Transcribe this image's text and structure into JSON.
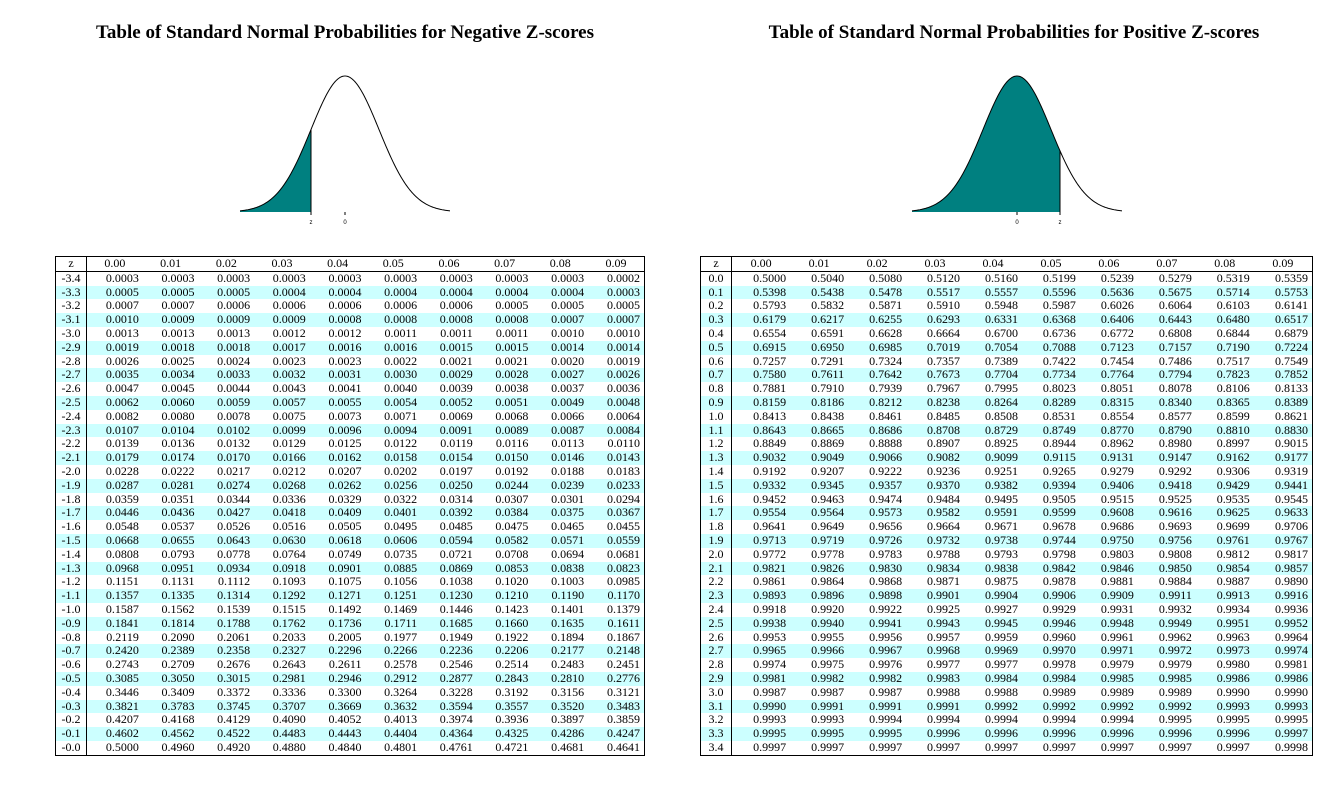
{
  "colors": {
    "shade": "#008080",
    "stripe": "#ccffff"
  },
  "negative": {
    "title": "Table of Standard Normal Probabilities for Negative Z-scores",
    "curve": {
      "shaded": "left-tail",
      "z_label": "z",
      "zero_label": "0"
    },
    "header": [
      "z",
      "0.00",
      "0.01",
      "0.02",
      "0.03",
      "0.04",
      "0.05",
      "0.06",
      "0.07",
      "0.08",
      "0.09"
    ],
    "rows": [
      [
        "-3.4",
        "0.0003",
        "0.0003",
        "0.0003",
        "0.0003",
        "0.0003",
        "0.0003",
        "0.0003",
        "0.0003",
        "0.0003",
        "0.0002"
      ],
      [
        "-3.3",
        "0.0005",
        "0.0005",
        "0.0005",
        "0.0004",
        "0.0004",
        "0.0004",
        "0.0004",
        "0.0004",
        "0.0004",
        "0.0003"
      ],
      [
        "-3.2",
        "0.0007",
        "0.0007",
        "0.0006",
        "0.0006",
        "0.0006",
        "0.0006",
        "0.0006",
        "0.0005",
        "0.0005",
        "0.0005"
      ],
      [
        "-3.1",
        "0.0010",
        "0.0009",
        "0.0009",
        "0.0009",
        "0.0008",
        "0.0008",
        "0.0008",
        "0.0008",
        "0.0007",
        "0.0007"
      ],
      [
        "-3.0",
        "0.0013",
        "0.0013",
        "0.0013",
        "0.0012",
        "0.0012",
        "0.0011",
        "0.0011",
        "0.0011",
        "0.0010",
        "0.0010"
      ],
      [
        "-2.9",
        "0.0019",
        "0.0018",
        "0.0018",
        "0.0017",
        "0.0016",
        "0.0016",
        "0.0015",
        "0.0015",
        "0.0014",
        "0.0014"
      ],
      [
        "-2.8",
        "0.0026",
        "0.0025",
        "0.0024",
        "0.0023",
        "0.0023",
        "0.0022",
        "0.0021",
        "0.0021",
        "0.0020",
        "0.0019"
      ],
      [
        "-2.7",
        "0.0035",
        "0.0034",
        "0.0033",
        "0.0032",
        "0.0031",
        "0.0030",
        "0.0029",
        "0.0028",
        "0.0027",
        "0.0026"
      ],
      [
        "-2.6",
        "0.0047",
        "0.0045",
        "0.0044",
        "0.0043",
        "0.0041",
        "0.0040",
        "0.0039",
        "0.0038",
        "0.0037",
        "0.0036"
      ],
      [
        "-2.5",
        "0.0062",
        "0.0060",
        "0.0059",
        "0.0057",
        "0.0055",
        "0.0054",
        "0.0052",
        "0.0051",
        "0.0049",
        "0.0048"
      ],
      [
        "-2.4",
        "0.0082",
        "0.0080",
        "0.0078",
        "0.0075",
        "0.0073",
        "0.0071",
        "0.0069",
        "0.0068",
        "0.0066",
        "0.0064"
      ],
      [
        "-2.3",
        "0.0107",
        "0.0104",
        "0.0102",
        "0.0099",
        "0.0096",
        "0.0094",
        "0.0091",
        "0.0089",
        "0.0087",
        "0.0084"
      ],
      [
        "-2.2",
        "0.0139",
        "0.0136",
        "0.0132",
        "0.0129",
        "0.0125",
        "0.0122",
        "0.0119",
        "0.0116",
        "0.0113",
        "0.0110"
      ],
      [
        "-2.1",
        "0.0179",
        "0.0174",
        "0.0170",
        "0.0166",
        "0.0162",
        "0.0158",
        "0.0154",
        "0.0150",
        "0.0146",
        "0.0143"
      ],
      [
        "-2.0",
        "0.0228",
        "0.0222",
        "0.0217",
        "0.0212",
        "0.0207",
        "0.0202",
        "0.0197",
        "0.0192",
        "0.0188",
        "0.0183"
      ],
      [
        "-1.9",
        "0.0287",
        "0.0281",
        "0.0274",
        "0.0268",
        "0.0262",
        "0.0256",
        "0.0250",
        "0.0244",
        "0.0239",
        "0.0233"
      ],
      [
        "-1.8",
        "0.0359",
        "0.0351",
        "0.0344",
        "0.0336",
        "0.0329",
        "0.0322",
        "0.0314",
        "0.0307",
        "0.0301",
        "0.0294"
      ],
      [
        "-1.7",
        "0.0446",
        "0.0436",
        "0.0427",
        "0.0418",
        "0.0409",
        "0.0401",
        "0.0392",
        "0.0384",
        "0.0375",
        "0.0367"
      ],
      [
        "-1.6",
        "0.0548",
        "0.0537",
        "0.0526",
        "0.0516",
        "0.0505",
        "0.0495",
        "0.0485",
        "0.0475",
        "0.0465",
        "0.0455"
      ],
      [
        "-1.5",
        "0.0668",
        "0.0655",
        "0.0643",
        "0.0630",
        "0.0618",
        "0.0606",
        "0.0594",
        "0.0582",
        "0.0571",
        "0.0559"
      ],
      [
        "-1.4",
        "0.0808",
        "0.0793",
        "0.0778",
        "0.0764",
        "0.0749",
        "0.0735",
        "0.0721",
        "0.0708",
        "0.0694",
        "0.0681"
      ],
      [
        "-1.3",
        "0.0968",
        "0.0951",
        "0.0934",
        "0.0918",
        "0.0901",
        "0.0885",
        "0.0869",
        "0.0853",
        "0.0838",
        "0.0823"
      ],
      [
        "-1.2",
        "0.1151",
        "0.1131",
        "0.1112",
        "0.1093",
        "0.1075",
        "0.1056",
        "0.1038",
        "0.1020",
        "0.1003",
        "0.0985"
      ],
      [
        "-1.1",
        "0.1357",
        "0.1335",
        "0.1314",
        "0.1292",
        "0.1271",
        "0.1251",
        "0.1230",
        "0.1210",
        "0.1190",
        "0.1170"
      ],
      [
        "-1.0",
        "0.1587",
        "0.1562",
        "0.1539",
        "0.1515",
        "0.1492",
        "0.1469",
        "0.1446",
        "0.1423",
        "0.1401",
        "0.1379"
      ],
      [
        "-0.9",
        "0.1841",
        "0.1814",
        "0.1788",
        "0.1762",
        "0.1736",
        "0.1711",
        "0.1685",
        "0.1660",
        "0.1635",
        "0.1611"
      ],
      [
        "-0.8",
        "0.2119",
        "0.2090",
        "0.2061",
        "0.2033",
        "0.2005",
        "0.1977",
        "0.1949",
        "0.1922",
        "0.1894",
        "0.1867"
      ],
      [
        "-0.7",
        "0.2420",
        "0.2389",
        "0.2358",
        "0.2327",
        "0.2296",
        "0.2266",
        "0.2236",
        "0.2206",
        "0.2177",
        "0.2148"
      ],
      [
        "-0.6",
        "0.2743",
        "0.2709",
        "0.2676",
        "0.2643",
        "0.2611",
        "0.2578",
        "0.2546",
        "0.2514",
        "0.2483",
        "0.2451"
      ],
      [
        "-0.5",
        "0.3085",
        "0.3050",
        "0.3015",
        "0.2981",
        "0.2946",
        "0.2912",
        "0.2877",
        "0.2843",
        "0.2810",
        "0.2776"
      ],
      [
        "-0.4",
        "0.3446",
        "0.3409",
        "0.3372",
        "0.3336",
        "0.3300",
        "0.3264",
        "0.3228",
        "0.3192",
        "0.3156",
        "0.3121"
      ],
      [
        "-0.3",
        "0.3821",
        "0.3783",
        "0.3745",
        "0.3707",
        "0.3669",
        "0.3632",
        "0.3594",
        "0.3557",
        "0.3520",
        "0.3483"
      ],
      [
        "-0.2",
        "0.4207",
        "0.4168",
        "0.4129",
        "0.4090",
        "0.4052",
        "0.4013",
        "0.3974",
        "0.3936",
        "0.3897",
        "0.3859"
      ],
      [
        "-0.1",
        "0.4602",
        "0.4562",
        "0.4522",
        "0.4483",
        "0.4443",
        "0.4404",
        "0.4364",
        "0.4325",
        "0.4286",
        "0.4247"
      ],
      [
        "-0.0",
        "0.5000",
        "0.4960",
        "0.4920",
        "0.4880",
        "0.4840",
        "0.4801",
        "0.4761",
        "0.4721",
        "0.4681",
        "0.4641"
      ]
    ]
  },
  "positive": {
    "title": "Table of Standard Normal Probabilities for Positive Z-scores",
    "curve": {
      "shaded": "left-of-positive-z",
      "z_label": "z",
      "zero_label": "0"
    },
    "header": [
      "z",
      "0.00",
      "0.01",
      "0.02",
      "0.03",
      "0.04",
      "0.05",
      "0.06",
      "0.07",
      "0.08",
      "0.09"
    ],
    "rows": [
      [
        "0.0",
        "0.5000",
        "0.5040",
        "0.5080",
        "0.5120",
        "0.5160",
        "0.5199",
        "0.5239",
        "0.5279",
        "0.5319",
        "0.5359"
      ],
      [
        "0.1",
        "0.5398",
        "0.5438",
        "0.5478",
        "0.5517",
        "0.5557",
        "0.5596",
        "0.5636",
        "0.5675",
        "0.5714",
        "0.5753"
      ],
      [
        "0.2",
        "0.5793",
        "0.5832",
        "0.5871",
        "0.5910",
        "0.5948",
        "0.5987",
        "0.6026",
        "0.6064",
        "0.6103",
        "0.6141"
      ],
      [
        "0.3",
        "0.6179",
        "0.6217",
        "0.6255",
        "0.6293",
        "0.6331",
        "0.6368",
        "0.6406",
        "0.6443",
        "0.6480",
        "0.6517"
      ],
      [
        "0.4",
        "0.6554",
        "0.6591",
        "0.6628",
        "0.6664",
        "0.6700",
        "0.6736",
        "0.6772",
        "0.6808",
        "0.6844",
        "0.6879"
      ],
      [
        "0.5",
        "0.6915",
        "0.6950",
        "0.6985",
        "0.7019",
        "0.7054",
        "0.7088",
        "0.7123",
        "0.7157",
        "0.7190",
        "0.7224"
      ],
      [
        "0.6",
        "0.7257",
        "0.7291",
        "0.7324",
        "0.7357",
        "0.7389",
        "0.7422",
        "0.7454",
        "0.7486",
        "0.7517",
        "0.7549"
      ],
      [
        "0.7",
        "0.7580",
        "0.7611",
        "0.7642",
        "0.7673",
        "0.7704",
        "0.7734",
        "0.7764",
        "0.7794",
        "0.7823",
        "0.7852"
      ],
      [
        "0.8",
        "0.7881",
        "0.7910",
        "0.7939",
        "0.7967",
        "0.7995",
        "0.8023",
        "0.8051",
        "0.8078",
        "0.8106",
        "0.8133"
      ],
      [
        "0.9",
        "0.8159",
        "0.8186",
        "0.8212",
        "0.8238",
        "0.8264",
        "0.8289",
        "0.8315",
        "0.8340",
        "0.8365",
        "0.8389"
      ],
      [
        "1.0",
        "0.8413",
        "0.8438",
        "0.8461",
        "0.8485",
        "0.8508",
        "0.8531",
        "0.8554",
        "0.8577",
        "0.8599",
        "0.8621"
      ],
      [
        "1.1",
        "0.8643",
        "0.8665",
        "0.8686",
        "0.8708",
        "0.8729",
        "0.8749",
        "0.8770",
        "0.8790",
        "0.8810",
        "0.8830"
      ],
      [
        "1.2",
        "0.8849",
        "0.8869",
        "0.8888",
        "0.8907",
        "0.8925",
        "0.8944",
        "0.8962",
        "0.8980",
        "0.8997",
        "0.9015"
      ],
      [
        "1.3",
        "0.9032",
        "0.9049",
        "0.9066",
        "0.9082",
        "0.9099",
        "0.9115",
        "0.9131",
        "0.9147",
        "0.9162",
        "0.9177"
      ],
      [
        "1.4",
        "0.9192",
        "0.9207",
        "0.9222",
        "0.9236",
        "0.9251",
        "0.9265",
        "0.9279",
        "0.9292",
        "0.9306",
        "0.9319"
      ],
      [
        "1.5",
        "0.9332",
        "0.9345",
        "0.9357",
        "0.9370",
        "0.9382",
        "0.9394",
        "0.9406",
        "0.9418",
        "0.9429",
        "0.9441"
      ],
      [
        "1.6",
        "0.9452",
        "0.9463",
        "0.9474",
        "0.9484",
        "0.9495",
        "0.9505",
        "0.9515",
        "0.9525",
        "0.9535",
        "0.9545"
      ],
      [
        "1.7",
        "0.9554",
        "0.9564",
        "0.9573",
        "0.9582",
        "0.9591",
        "0.9599",
        "0.9608",
        "0.9616",
        "0.9625",
        "0.9633"
      ],
      [
        "1.8",
        "0.9641",
        "0.9649",
        "0.9656",
        "0.9664",
        "0.9671",
        "0.9678",
        "0.9686",
        "0.9693",
        "0.9699",
        "0.9706"
      ],
      [
        "1.9",
        "0.9713",
        "0.9719",
        "0.9726",
        "0.9732",
        "0.9738",
        "0.9744",
        "0.9750",
        "0.9756",
        "0.9761",
        "0.9767"
      ],
      [
        "2.0",
        "0.9772",
        "0.9778",
        "0.9783",
        "0.9788",
        "0.9793",
        "0.9798",
        "0.9803",
        "0.9808",
        "0.9812",
        "0.9817"
      ],
      [
        "2.1",
        "0.9821",
        "0.9826",
        "0.9830",
        "0.9834",
        "0.9838",
        "0.9842",
        "0.9846",
        "0.9850",
        "0.9854",
        "0.9857"
      ],
      [
        "2.2",
        "0.9861",
        "0.9864",
        "0.9868",
        "0.9871",
        "0.9875",
        "0.9878",
        "0.9881",
        "0.9884",
        "0.9887",
        "0.9890"
      ],
      [
        "2.3",
        "0.9893",
        "0.9896",
        "0.9898",
        "0.9901",
        "0.9904",
        "0.9906",
        "0.9909",
        "0.9911",
        "0.9913",
        "0.9916"
      ],
      [
        "2.4",
        "0.9918",
        "0.9920",
        "0.9922",
        "0.9925",
        "0.9927",
        "0.9929",
        "0.9931",
        "0.9932",
        "0.9934",
        "0.9936"
      ],
      [
        "2.5",
        "0.9938",
        "0.9940",
        "0.9941",
        "0.9943",
        "0.9945",
        "0.9946",
        "0.9948",
        "0.9949",
        "0.9951",
        "0.9952"
      ],
      [
        "2.6",
        "0.9953",
        "0.9955",
        "0.9956",
        "0.9957",
        "0.9959",
        "0.9960",
        "0.9961",
        "0.9962",
        "0.9963",
        "0.9964"
      ],
      [
        "2.7",
        "0.9965",
        "0.9966",
        "0.9967",
        "0.9968",
        "0.9969",
        "0.9970",
        "0.9971",
        "0.9972",
        "0.9973",
        "0.9974"
      ],
      [
        "2.8",
        "0.9974",
        "0.9975",
        "0.9976",
        "0.9977",
        "0.9977",
        "0.9978",
        "0.9979",
        "0.9979",
        "0.9980",
        "0.9981"
      ],
      [
        "2.9",
        "0.9981",
        "0.9982",
        "0.9982",
        "0.9983",
        "0.9984",
        "0.9984",
        "0.9985",
        "0.9985",
        "0.9986",
        "0.9986"
      ],
      [
        "3.0",
        "0.9987",
        "0.9987",
        "0.9987",
        "0.9988",
        "0.9988",
        "0.9989",
        "0.9989",
        "0.9989",
        "0.9990",
        "0.9990"
      ],
      [
        "3.1",
        "0.9990",
        "0.9991",
        "0.9991",
        "0.9991",
        "0.9992",
        "0.9992",
        "0.9992",
        "0.9992",
        "0.9993",
        "0.9993"
      ],
      [
        "3.2",
        "0.9993",
        "0.9993",
        "0.9994",
        "0.9994",
        "0.9994",
        "0.9994",
        "0.9994",
        "0.9995",
        "0.9995",
        "0.9995"
      ],
      [
        "3.3",
        "0.9995",
        "0.9995",
        "0.9995",
        "0.9996",
        "0.9996",
        "0.9996",
        "0.9996",
        "0.9996",
        "0.9996",
        "0.9997"
      ],
      [
        "3.4",
        "0.9997",
        "0.9997",
        "0.9997",
        "0.9997",
        "0.9997",
        "0.9997",
        "0.9997",
        "0.9997",
        "0.9997",
        "0.9998"
      ]
    ]
  }
}
